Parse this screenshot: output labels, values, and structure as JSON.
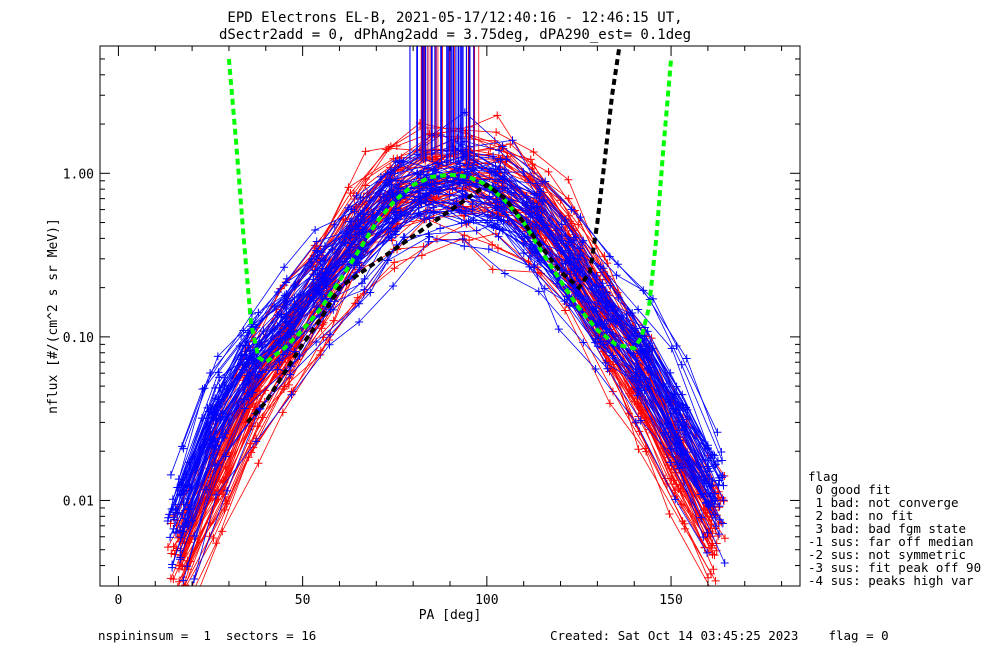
{
  "chart_data": {
    "type": "line",
    "title": "EPD Electrons EL-B, 2021-05-17/12:40:16 - 12:46:15 UT,",
    "subtitle": "dSectr2add = 0, dPhAng2add = 3.75deg, dPA290_est=    0.1deg",
    "xlabel": "PA [deg]",
    "ylabel": "nflux [#/(cm^2 s sr MeV)]",
    "xlim": [
      -5,
      185
    ],
    "ylim": [
      0.003,
      6
    ],
    "yscale": "log",
    "x_ticks": [
      "0",
      "50",
      "100",
      "150"
    ],
    "y_ticks": [
      "0.01",
      "0.10",
      "1.00"
    ],
    "grid": false,
    "series": [
      {
        "color": "#ff0000",
        "marker": "+",
        "description_points": [
          {
            "x": 20,
            "y": 0.005
          },
          {
            "x": 25,
            "y": 0.012
          },
          {
            "x": 35,
            "y": 0.04
          },
          {
            "x": 45,
            "y": 0.09
          },
          {
            "x": 55,
            "y": 0.2
          },
          {
            "x": 63,
            "y": 0.4
          },
          {
            "x": 70,
            "y": 0.6
          },
          {
            "x": 80,
            "y": 0.85
          },
          {
            "x": 90,
            "y": 0.95
          },
          {
            "x": 100,
            "y": 0.9
          },
          {
            "x": 110,
            "y": 0.7
          },
          {
            "x": 120,
            "y": 0.4
          },
          {
            "x": 130,
            "y": 0.15
          },
          {
            "x": 140,
            "y": 0.06
          },
          {
            "x": 150,
            "y": 0.02
          },
          {
            "x": 160,
            "y": 0.008
          },
          {
            "x": 166,
            "y": 0.005
          }
        ]
      },
      {
        "color": "#0000ff",
        "marker": "+",
        "description_points": [
          {
            "x": 15,
            "y": 0.006
          },
          {
            "x": 22,
            "y": 0.02
          },
          {
            "x": 30,
            "y": 0.05
          },
          {
            "x": 40,
            "y": 0.09
          },
          {
            "x": 50,
            "y": 0.16
          },
          {
            "x": 60,
            "y": 0.3
          },
          {
            "x": 70,
            "y": 0.55
          },
          {
            "x": 80,
            "y": 0.85
          },
          {
            "x": 90,
            "y": 0.92
          },
          {
            "x": 100,
            "y": 0.88
          },
          {
            "x": 110,
            "y": 0.6
          },
          {
            "x": 120,
            "y": 0.35
          },
          {
            "x": 130,
            "y": 0.16
          },
          {
            "x": 140,
            "y": 0.1
          },
          {
            "x": 150,
            "y": 0.04
          },
          {
            "x": 160,
            "y": 0.012
          }
        ]
      },
      {
        "color": "#00ff00",
        "style": "dashed",
        "x": [
          30,
          32,
          34,
          36,
          38,
          40,
          45,
          50,
          55,
          60,
          65,
          70,
          75,
          80,
          85,
          90,
          95,
          100,
          105,
          110,
          115,
          120,
          125,
          130,
          135,
          140,
          142,
          144,
          146,
          148,
          150
        ],
        "y": [
          5,
          1.5,
          0.4,
          0.12,
          0.075,
          0.07,
          0.085,
          0.11,
          0.15,
          0.22,
          0.33,
          0.5,
          0.68,
          0.85,
          0.95,
          0.98,
          0.95,
          0.85,
          0.68,
          0.5,
          0.33,
          0.22,
          0.15,
          0.11,
          0.09,
          0.085,
          0.1,
          0.15,
          0.4,
          1.5,
          5
        ]
      },
      {
        "color": "#000000",
        "style": "dashed",
        "x": [
          35,
          40,
          45,
          50,
          55,
          60,
          100,
          105,
          110,
          115,
          120,
          125,
          128,
          130,
          132,
          134,
          136
        ],
        "y": [
          0.03,
          0.04,
          0.06,
          0.09,
          0.13,
          0.2,
          0.85,
          0.7,
          0.5,
          0.35,
          0.25,
          0.2,
          0.25,
          0.5,
          1.2,
          3,
          6
        ]
      }
    ]
  },
  "legend": {
    "title": "flag",
    "items": [
      " 0 good fit",
      " 1 bad: not converge",
      " 2 bad: no fit",
      " 3 bad: bad fgm state",
      "-1 sus: far off median",
      "-2 sus: not symmetric",
      "-3 sus: fit peak off 90",
      "-4 sus: peaks high var"
    ]
  },
  "footer": {
    "left": "nspininsum =  1  sectors = 16",
    "right": "Created: Sat Oct 14 03:45:25 2023    flag = 0"
  },
  "colors": {
    "red": "#ff0000",
    "blue": "#0000ff",
    "green": "#00ff00",
    "black": "#000000"
  }
}
